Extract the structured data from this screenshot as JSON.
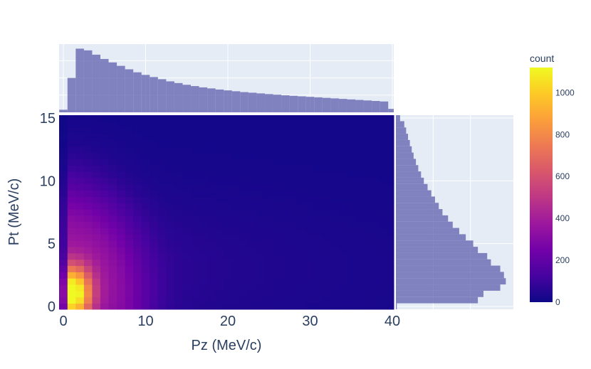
{
  "chart_data": {
    "type": "heatmap",
    "subtype": "density_heatmap_with_marginal_histograms",
    "xlabel": "Pz (MeV/c)",
    "ylabel": "Pt (MeV/c)",
    "xlim": [
      0,
      40
    ],
    "ylim": [
      0,
      15
    ],
    "x_ticks": [
      "0",
      "10",
      "20",
      "30",
      "40"
    ],
    "y_ticks": [
      "0",
      "5",
      "10",
      "15"
    ],
    "colorbar": {
      "title": "count",
      "ticks": [
        "0",
        "200",
        "400",
        "600",
        "800",
        "1000"
      ],
      "range": [
        0,
        1120
      ],
      "colorscale": [
        "#0d0887",
        "#46039f",
        "#7201a8",
        "#9c179e",
        "#bd3786",
        "#d8576b",
        "#ed7953",
        "#fb9f3a",
        "#fdca26",
        "#f0f921"
      ]
    },
    "marginal_x": {
      "type": "histogram",
      "bin_width": 1,
      "bins": [
        [
          -0.5,
          0.5,
          30
        ],
        [
          0.5,
          1.5,
          400
        ],
        [
          1.5,
          2.5,
          740
        ],
        [
          2.5,
          3.5,
          720
        ],
        [
          3.5,
          4.5,
          670
        ],
        [
          4.5,
          5.5,
          620
        ],
        [
          5.5,
          6.5,
          580
        ],
        [
          6.5,
          7.5,
          540
        ],
        [
          7.5,
          8.5,
          500
        ],
        [
          8.5,
          9.5,
          465
        ],
        [
          9.5,
          10.5,
          435
        ],
        [
          10.5,
          11.5,
          410
        ],
        [
          11.5,
          12.5,
          385
        ],
        [
          12.5,
          13.5,
          360
        ],
        [
          13.5,
          14.5,
          340
        ],
        [
          14.5,
          15.5,
          320
        ],
        [
          15.5,
          16.5,
          305
        ],
        [
          16.5,
          17.5,
          290
        ],
        [
          17.5,
          18.5,
          278
        ],
        [
          18.5,
          19.5,
          265
        ],
        [
          19.5,
          20.5,
          255
        ],
        [
          20.5,
          21.5,
          245
        ],
        [
          21.5,
          22.5,
          235
        ],
        [
          22.5,
          23.5,
          228
        ],
        [
          23.5,
          24.5,
          220
        ],
        [
          24.5,
          25.5,
          212
        ],
        [
          25.5,
          26.5,
          205
        ],
        [
          26.5,
          27.5,
          198
        ],
        [
          27.5,
          28.5,
          192
        ],
        [
          28.5,
          29.5,
          186
        ],
        [
          29.5,
          30.5,
          180
        ],
        [
          30.5,
          31.5,
          174
        ],
        [
          31.5,
          32.5,
          168
        ],
        [
          32.5,
          33.5,
          162
        ],
        [
          33.5,
          34.5,
          156
        ],
        [
          34.5,
          35.5,
          150
        ],
        [
          35.5,
          36.5,
          144
        ],
        [
          36.5,
          37.5,
          138
        ],
        [
          37.5,
          38.5,
          132
        ],
        [
          38.5,
          39.5,
          126
        ],
        [
          39.5,
          40.5,
          40
        ]
      ]
    },
    "marginal_y": {
      "type": "histogram",
      "bin_width": 0.5,
      "bins": [
        [
          -0.25,
          0.25,
          10
        ],
        [
          0.25,
          0.75,
          880
        ],
        [
          0.75,
          1.25,
          940
        ],
        [
          1.25,
          1.75,
          1120
        ],
        [
          1.75,
          2.25,
          1180
        ],
        [
          2.25,
          2.75,
          1160
        ],
        [
          2.75,
          3.25,
          1120
        ],
        [
          3.25,
          3.75,
          1020
        ],
        [
          3.75,
          4.25,
          980
        ],
        [
          4.25,
          4.75,
          880
        ],
        [
          4.75,
          5.25,
          830
        ],
        [
          5.25,
          5.75,
          750
        ],
        [
          5.75,
          6.25,
          680
        ],
        [
          6.25,
          6.75,
          610
        ],
        [
          6.75,
          7.25,
          560
        ],
        [
          7.25,
          7.75,
          500
        ],
        [
          7.75,
          8.25,
          460
        ],
        [
          8.25,
          8.75,
          420
        ],
        [
          8.75,
          9.25,
          380
        ],
        [
          9.25,
          9.75,
          340
        ],
        [
          9.75,
          10.25,
          300
        ],
        [
          10.25,
          10.75,
          270
        ],
        [
          10.75,
          11.25,
          240
        ],
        [
          11.25,
          11.75,
          215
        ],
        [
          11.75,
          12.25,
          190
        ],
        [
          12.25,
          12.75,
          170
        ],
        [
          12.75,
          13.25,
          150
        ],
        [
          13.25,
          13.75,
          130
        ],
        [
          13.75,
          14.25,
          110
        ],
        [
          14.25,
          14.75,
          90
        ],
        [
          14.75,
          15.25,
          45
        ]
      ]
    },
    "heatmap": {
      "x_bin_width": 1,
      "y_bin_width": 0.5,
      "x_start": -0.5,
      "y_start": -0.25,
      "nx": 41,
      "ny": 31,
      "peak": {
        "pz": 1,
        "pt": 1,
        "count": 1120
      }
    }
  }
}
